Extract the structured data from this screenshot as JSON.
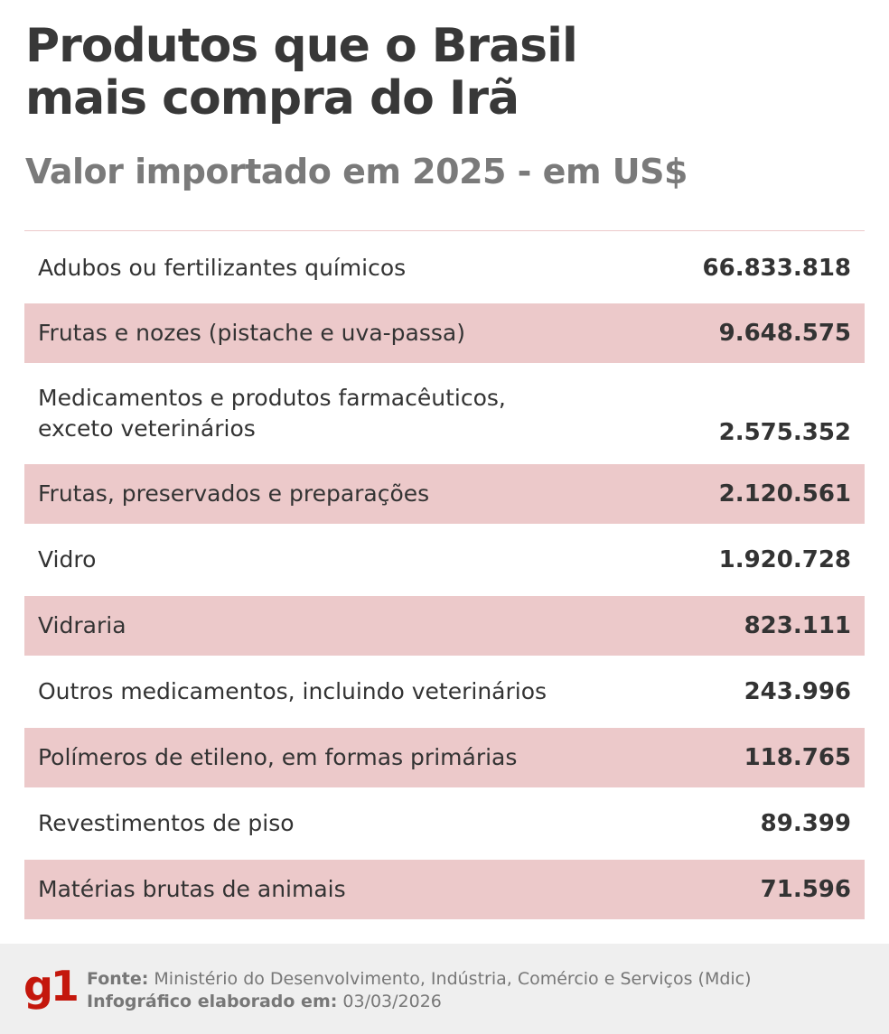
{
  "title_lines": [
    "Produtos que o Brasil",
    "mais compra do Irã"
  ],
  "subtitle": "Valor importado em 2025 - em US$",
  "colors": {
    "stripe": "#ecc9ca",
    "brand": "#c4170c",
    "footer_bg": "#efefef"
  },
  "chart_data": {
    "type": "table",
    "title": "Produtos que o Brasil mais compra do Irã",
    "subtitle": "Valor importado em 2025 - em US$",
    "rows": [
      {
        "label": "Adubos ou fertilizantes químicos",
        "value": "66.833.818"
      },
      {
        "label": "Frutas e nozes (pistache e uva-passa)",
        "value": "9.648.575"
      },
      {
        "label": "Medicamentos e produtos farmacêuticos, exceto veterinários",
        "value": "2.575.352"
      },
      {
        "label": "Frutas, preservados e preparações",
        "value": "2.120.561"
      },
      {
        "label": "Vidro",
        "value": "1.920.728"
      },
      {
        "label": "Vidraria",
        "value": "823.111"
      },
      {
        "label": "Outros medicamentos, incluindo veterinários",
        "value": "243.996"
      },
      {
        "label": "Polímeros de etileno, em formas primárias",
        "value": "118.765"
      },
      {
        "label": "Revestimentos de piso",
        "value": "89.399"
      },
      {
        "label": "Matérias brutas de animais",
        "value": "71.596"
      }
    ]
  },
  "row3_lines": [
    "Medicamentos e produtos farmacêuticos,",
    "exceto veterinários"
  ],
  "footer": {
    "logo": "g1",
    "source_label": "Fonte:",
    "source_text": "Ministério do Desenvolvimento, Indústria, Comércio e Serviços (Mdic)",
    "date_label": "Infográfico elaborado em:",
    "date_text": "03/03/2026"
  }
}
